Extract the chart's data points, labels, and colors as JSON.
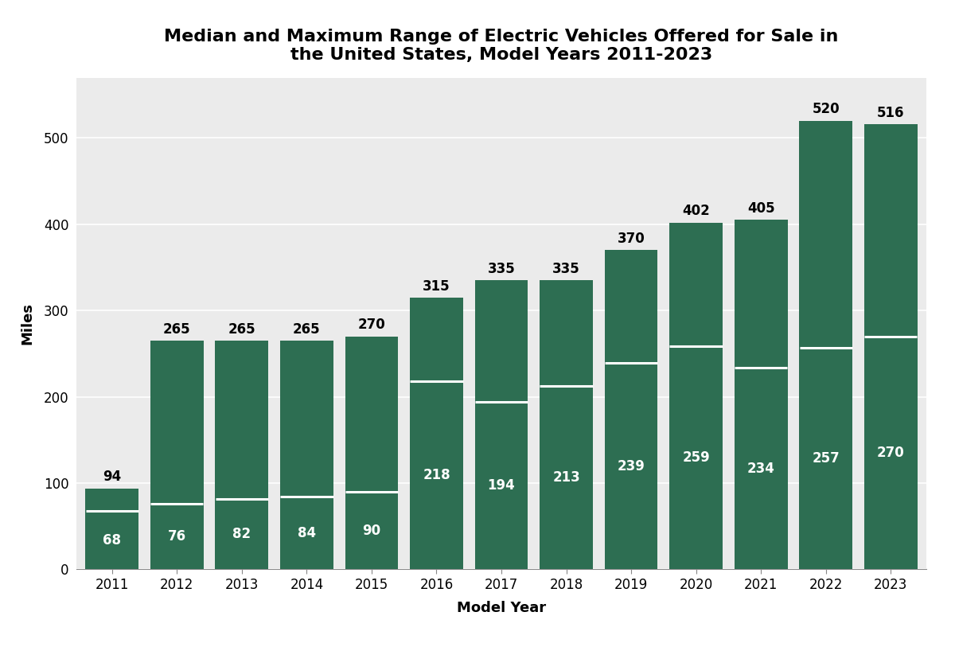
{
  "title": "Median and Maximum Range of Electric Vehicles Offered for Sale in\nthe United States, Model Years 2011-2023",
  "xlabel": "Model Year",
  "ylabel": "Miles",
  "years": [
    2011,
    2012,
    2013,
    2014,
    2015,
    2016,
    2017,
    2018,
    2019,
    2020,
    2021,
    2022,
    2023
  ],
  "max_range": [
    94,
    265,
    265,
    265,
    270,
    315,
    335,
    335,
    370,
    402,
    405,
    520,
    516
  ],
  "median_range": [
    68,
    76,
    82,
    84,
    90,
    218,
    194,
    213,
    239,
    259,
    234,
    257,
    270
  ],
  "bar_color": "#2d6e52",
  "median_line_color": "#ffffff",
  "background_color": "#ebebeb",
  "fig_background_color": "#ffffff",
  "title_fontsize": 16,
  "axis_label_fontsize": 13,
  "tick_fontsize": 12,
  "annotation_fontsize_above": 12,
  "annotation_fontsize_inside": 12,
  "ylim": [
    0,
    570
  ],
  "bar_width": 0.82
}
